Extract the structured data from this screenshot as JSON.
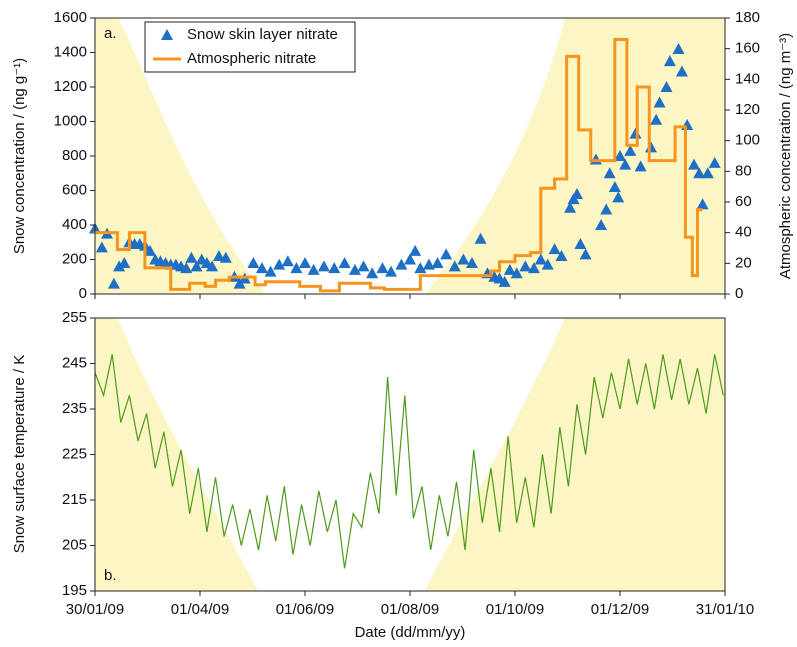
{
  "chart_data": [
    {
      "type": "combo",
      "label": "a.",
      "legend": "upper left",
      "ylabel": "Snow concentration  / (ng g⁻¹)",
      "y2label": "Atmospheric concentration / (ng m⁻³)",
      "xlim": [
        "30/01/09",
        "31/01/10"
      ],
      "xticks": [
        "30/01/09",
        "01/04/09",
        "01/06/09",
        "01/08/09",
        "01/10/09",
        "01/12/09",
        "31/01/10"
      ],
      "ylim": [
        0,
        1600
      ],
      "yticks": [
        0,
        200,
        400,
        600,
        800,
        1000,
        1200,
        1400,
        1600
      ],
      "y2lim": [
        0,
        180
      ],
      "y2ticks": [
        0,
        20,
        40,
        60,
        80,
        100,
        120,
        140,
        160,
        180
      ],
      "series": [
        {
          "name": "Snow skin layer nitrate",
          "type": "scatter",
          "color": "#1f6fc5",
          "x": [
            "30/01/09",
            "03/02/09",
            "06/02/09",
            "10/02/09",
            "13/02/09",
            "16/02/09",
            "19/02/09",
            "22/02/09",
            "25/02/09",
            "28/02/09",
            "03/03/09",
            "06/03/09",
            "09/03/09",
            "12/03/09",
            "15/03/09",
            "18/03/09",
            "21/03/09",
            "24/03/09",
            "27/03/09",
            "30/03/09",
            "02/04/09",
            "05/04/09",
            "08/04/09",
            "12/04/09",
            "16/04/09",
            "21/04/09",
            "24/04/09",
            "27/04/09",
            "02/05/09",
            "07/05/09",
            "12/05/09",
            "17/05/09",
            "22/05/09",
            "27/05/09",
            "01/06/09",
            "06/06/09",
            "12/06/09",
            "18/06/09",
            "24/06/09",
            "30/06/09",
            "05/07/09",
            "10/07/09",
            "16/07/09",
            "21/07/09",
            "27/07/09",
            "01/08/09",
            "04/08/09",
            "07/08/09",
            "12/08/09",
            "17/08/09",
            "22/08/09",
            "27/08/09",
            "01/09/09",
            "06/09/09",
            "11/09/09",
            "15/09/09",
            "19/09/09",
            "22/09/09",
            "25/09/09",
            "28/09/09",
            "02/10/09",
            "07/10/09",
            "12/10/09",
            "16/10/09",
            "20/10/09",
            "24/10/09",
            "28/10/09",
            "02/11/09",
            "04/11/09",
            "06/11/09",
            "08/11/09",
            "11/11/09",
            "17/11/09",
            "20/11/09",
            "23/11/09",
            "25/11/09",
            "28/11/09",
            "30/11/09",
            "01/12/09",
            "04/12/09",
            "07/12/09",
            "10/12/09",
            "13/12/09",
            "19/12/09",
            "22/12/09",
            "24/12/09",
            "28/12/09",
            "30/12/09",
            "04/01/10",
            "06/01/10",
            "09/01/10",
            "13/01/10",
            "16/01/10",
            "18/01/10",
            "21/01/10",
            "25/01/10"
          ],
          "values": [
            380,
            270,
            350,
            60,
            160,
            180,
            300,
            290,
            290,
            280,
            250,
            200,
            190,
            180,
            170,
            170,
            160,
            150,
            210,
            160,
            200,
            180,
            160,
            220,
            210,
            100,
            60,
            90,
            180,
            150,
            130,
            170,
            190,
            150,
            180,
            140,
            160,
            150,
            180,
            140,
            160,
            120,
            150,
            130,
            170,
            200,
            250,
            150,
            170,
            180,
            230,
            160,
            200,
            180,
            320,
            120,
            100,
            90,
            70,
            140,
            120,
            160,
            150,
            200,
            170,
            260,
            220,
            500,
            550,
            580,
            290,
            230,
            780,
            400,
            490,
            700,
            620,
            560,
            800,
            750,
            830,
            930,
            740,
            850,
            1010,
            1110,
            1200,
            1350,
            1420,
            1290,
            980,
            750,
            700,
            520,
            700,
            760
          ]
        },
        {
          "name": "Atmospheric nitrate",
          "type": "step",
          "axis": "y2",
          "color": "#f7941d",
          "x": [
            "30/01/09",
            "12/02/09",
            "19/02/09",
            "28/02/09",
            "15/03/09",
            "26/03/09",
            "04/04/09",
            "10/04/09",
            "18/04/09",
            "03/05/09",
            "09/05/09",
            "29/05/09",
            "10/06/09",
            "21/06/09",
            "09/07/09",
            "17/07/09",
            "07/08/09",
            "17/09/09",
            "22/09/09",
            "01/10/09",
            "10/10/09",
            "16/10/09",
            "24/10/09",
            "31/10/09",
            "07/11/09",
            "14/11/09",
            "28/11/09",
            "05/12/09",
            "11/12/09",
            "18/12/09",
            "02/01/10",
            "08/01/10",
            "12/01/10",
            "15/01/10",
            "17/01/10"
          ],
          "values": [
            40,
            29,
            40,
            17,
            3,
            7,
            5,
            9,
            11,
            6,
            8,
            5,
            2,
            7,
            4,
            3,
            12,
            15,
            21,
            25,
            27,
            69,
            75,
            155,
            107,
            87,
            166,
            97,
            135,
            87,
            109,
            37,
            12,
            55,
            55
          ]
        }
      ]
    },
    {
      "type": "line",
      "label": "b.",
      "xlabel": "Date (dd/mm/yy)",
      "ylabel": "Snow surface temperature / K",
      "xlim": [
        "30/01/09",
        "31/01/10"
      ],
      "xticks": [
        "30/01/09",
        "01/04/09",
        "01/06/09",
        "01/08/09",
        "01/10/09",
        "01/12/09",
        "31/01/10"
      ],
      "ylim": [
        195,
        255
      ],
      "yticks": [
        195,
        205,
        215,
        225,
        235,
        245,
        255
      ],
      "series": [
        {
          "color": "#4f9a1a",
          "x": [
            "30/01/09",
            "04/02/09",
            "09/02/09",
            "14/02/09",
            "19/02/09",
            "24/02/09",
            "01/03/09",
            "06/03/09",
            "11/03/09",
            "16/03/09",
            "21/03/09",
            "26/03/09",
            "31/03/09",
            "05/04/09",
            "10/04/09",
            "15/04/09",
            "20/04/09",
            "25/04/09",
            "30/04/09",
            "05/05/09",
            "10/05/09",
            "15/05/09",
            "20/05/09",
            "25/05/09",
            "30/05/09",
            "04/06/09",
            "09/06/09",
            "14/06/09",
            "19/06/09",
            "24/06/09",
            "29/06/09",
            "04/07/09",
            "09/07/09",
            "14/07/09",
            "19/07/09",
            "24/07/09",
            "29/07/09",
            "03/08/09",
            "08/08/09",
            "13/08/09",
            "18/08/09",
            "23/08/09",
            "28/08/09",
            "02/09/09",
            "07/09/09",
            "12/09/09",
            "17/09/09",
            "22/09/09",
            "27/09/09",
            "02/10/09",
            "07/10/09",
            "12/10/09",
            "17/10/09",
            "22/10/09",
            "27/10/09",
            "01/11/09",
            "06/11/09",
            "11/11/09",
            "16/11/09",
            "21/11/09",
            "26/11/09",
            "01/12/09",
            "06/12/09",
            "11/12/09",
            "16/12/09",
            "21/12/09",
            "26/12/09",
            "31/12/09",
            "05/01/10",
            "10/01/10",
            "15/01/10",
            "20/01/10",
            "25/01/10",
            "30/01/10"
          ],
          "values": [
            243,
            238,
            247,
            232,
            238,
            228,
            234,
            222,
            230,
            218,
            226,
            212,
            222,
            208,
            220,
            207,
            214,
            205,
            213,
            204,
            216,
            206,
            218,
            203,
            214,
            205,
            217,
            208,
            215,
            200,
            212,
            209,
            221,
            212,
            242,
            216,
            238,
            211,
            218,
            204,
            216,
            207,
            219,
            204,
            226,
            210,
            222,
            208,
            229,
            210,
            220,
            209,
            225,
            212,
            231,
            218,
            236,
            225,
            242,
            233,
            243,
            235,
            246,
            236,
            245,
            235,
            247,
            237,
            246,
            236,
            244,
            234,
            247,
            238
          ]
        }
      ]
    }
  ]
}
